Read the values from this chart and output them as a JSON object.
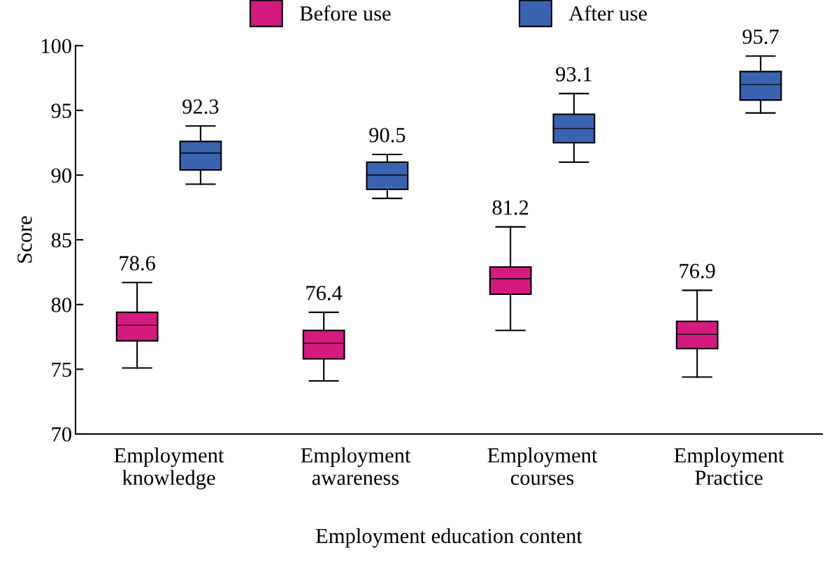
{
  "chart_data": {
    "type": "box",
    "xlabel": "Employment education content",
    "ylabel": "Score",
    "categories": [
      "Employment\nknowledge",
      "Employment\nawareness",
      "Employment\ncourses",
      "Employment\nPractice"
    ],
    "ylim": [
      70,
      100
    ],
    "yticks": [
      70,
      75,
      80,
      85,
      90,
      95,
      100
    ],
    "legend": "top",
    "grid": false,
    "series": [
      {
        "name": "Before use",
        "color": "#d4197f",
        "value_labels": [
          "78.6",
          "76.4",
          "81.2",
          "76.9"
        ],
        "boxes": [
          {
            "low": 75.1,
            "q1": 77.2,
            "median": 78.4,
            "q3": 79.4,
            "high": 81.7
          },
          {
            "low": 74.1,
            "q1": 75.8,
            "median": 77.0,
            "q3": 78.0,
            "high": 79.4
          },
          {
            "low": 78.0,
            "q1": 80.8,
            "median": 82.0,
            "q3": 82.9,
            "high": 86.0
          },
          {
            "low": 74.4,
            "q1": 76.6,
            "median": 77.7,
            "q3": 78.7,
            "high": 81.1
          }
        ]
      },
      {
        "name": "After use",
        "color": "#3a64b0",
        "value_labels": [
          "92.3",
          "90.5",
          "93.1",
          "95.7"
        ],
        "boxes": [
          {
            "low": 89.3,
            "q1": 90.4,
            "median": 91.7,
            "q3": 92.6,
            "high": 93.8
          },
          {
            "low": 88.2,
            "q1": 88.9,
            "median": 90.0,
            "q3": 91.0,
            "high": 91.6
          },
          {
            "low": 91.0,
            "q1": 92.5,
            "median": 93.6,
            "q3": 94.7,
            "high": 96.3
          },
          {
            "low": 94.8,
            "q1": 95.8,
            "median": 97.0,
            "q3": 98.0,
            "high": 99.2
          }
        ]
      }
    ]
  }
}
